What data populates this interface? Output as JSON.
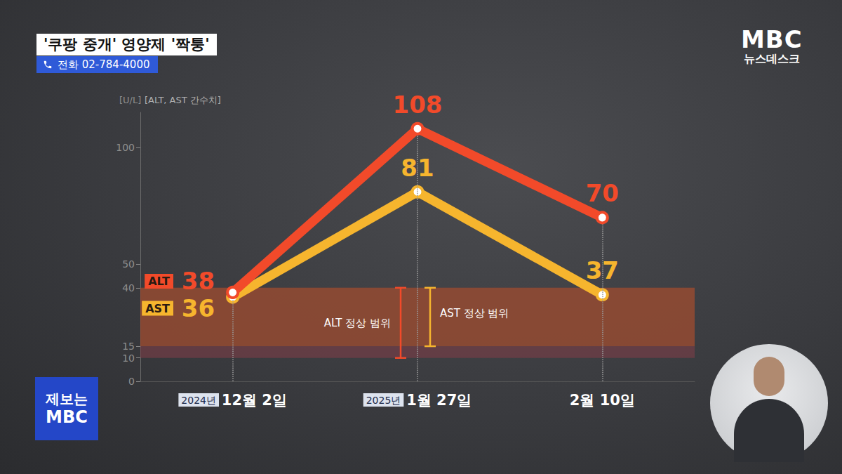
{
  "screen": {
    "headline": "'쿠팡 중개' 영양제 '짝퉁'",
    "phone": "전화 02-784-4000",
    "logo": [
      "MBC",
      "뉴스데스크"
    ],
    "tip_box": [
      "제보는",
      "MBC"
    ]
  },
  "chart_data": {
    "type": "line",
    "y_unit": "[U/L]",
    "ylabel": "[ALT, AST 간수치]",
    "categories": [
      "2024년 12월 2일",
      "2025년 1월 27일",
      "2월 10일"
    ],
    "series": [
      {
        "name": "ALT",
        "color": "#f24a2a",
        "values": [
          38,
          108,
          70
        ]
      },
      {
        "name": "AST",
        "color": "#f6b52e",
        "values": [
          36,
          81,
          37
        ]
      }
    ],
    "normal_ranges": [
      {
        "series": "ALT",
        "label": "ALT 정상 범위",
        "range": [
          10,
          40
        ]
      },
      {
        "series": "AST",
        "label": "AST 정상 범위",
        "range": [
          15,
          40
        ]
      }
    ],
    "ylim": [
      0,
      115
    ],
    "yticks": [
      0,
      10,
      15,
      40,
      50,
      100
    ],
    "grid": false,
    "data_labels": true,
    "marker": "circle",
    "line_style": "solid"
  }
}
